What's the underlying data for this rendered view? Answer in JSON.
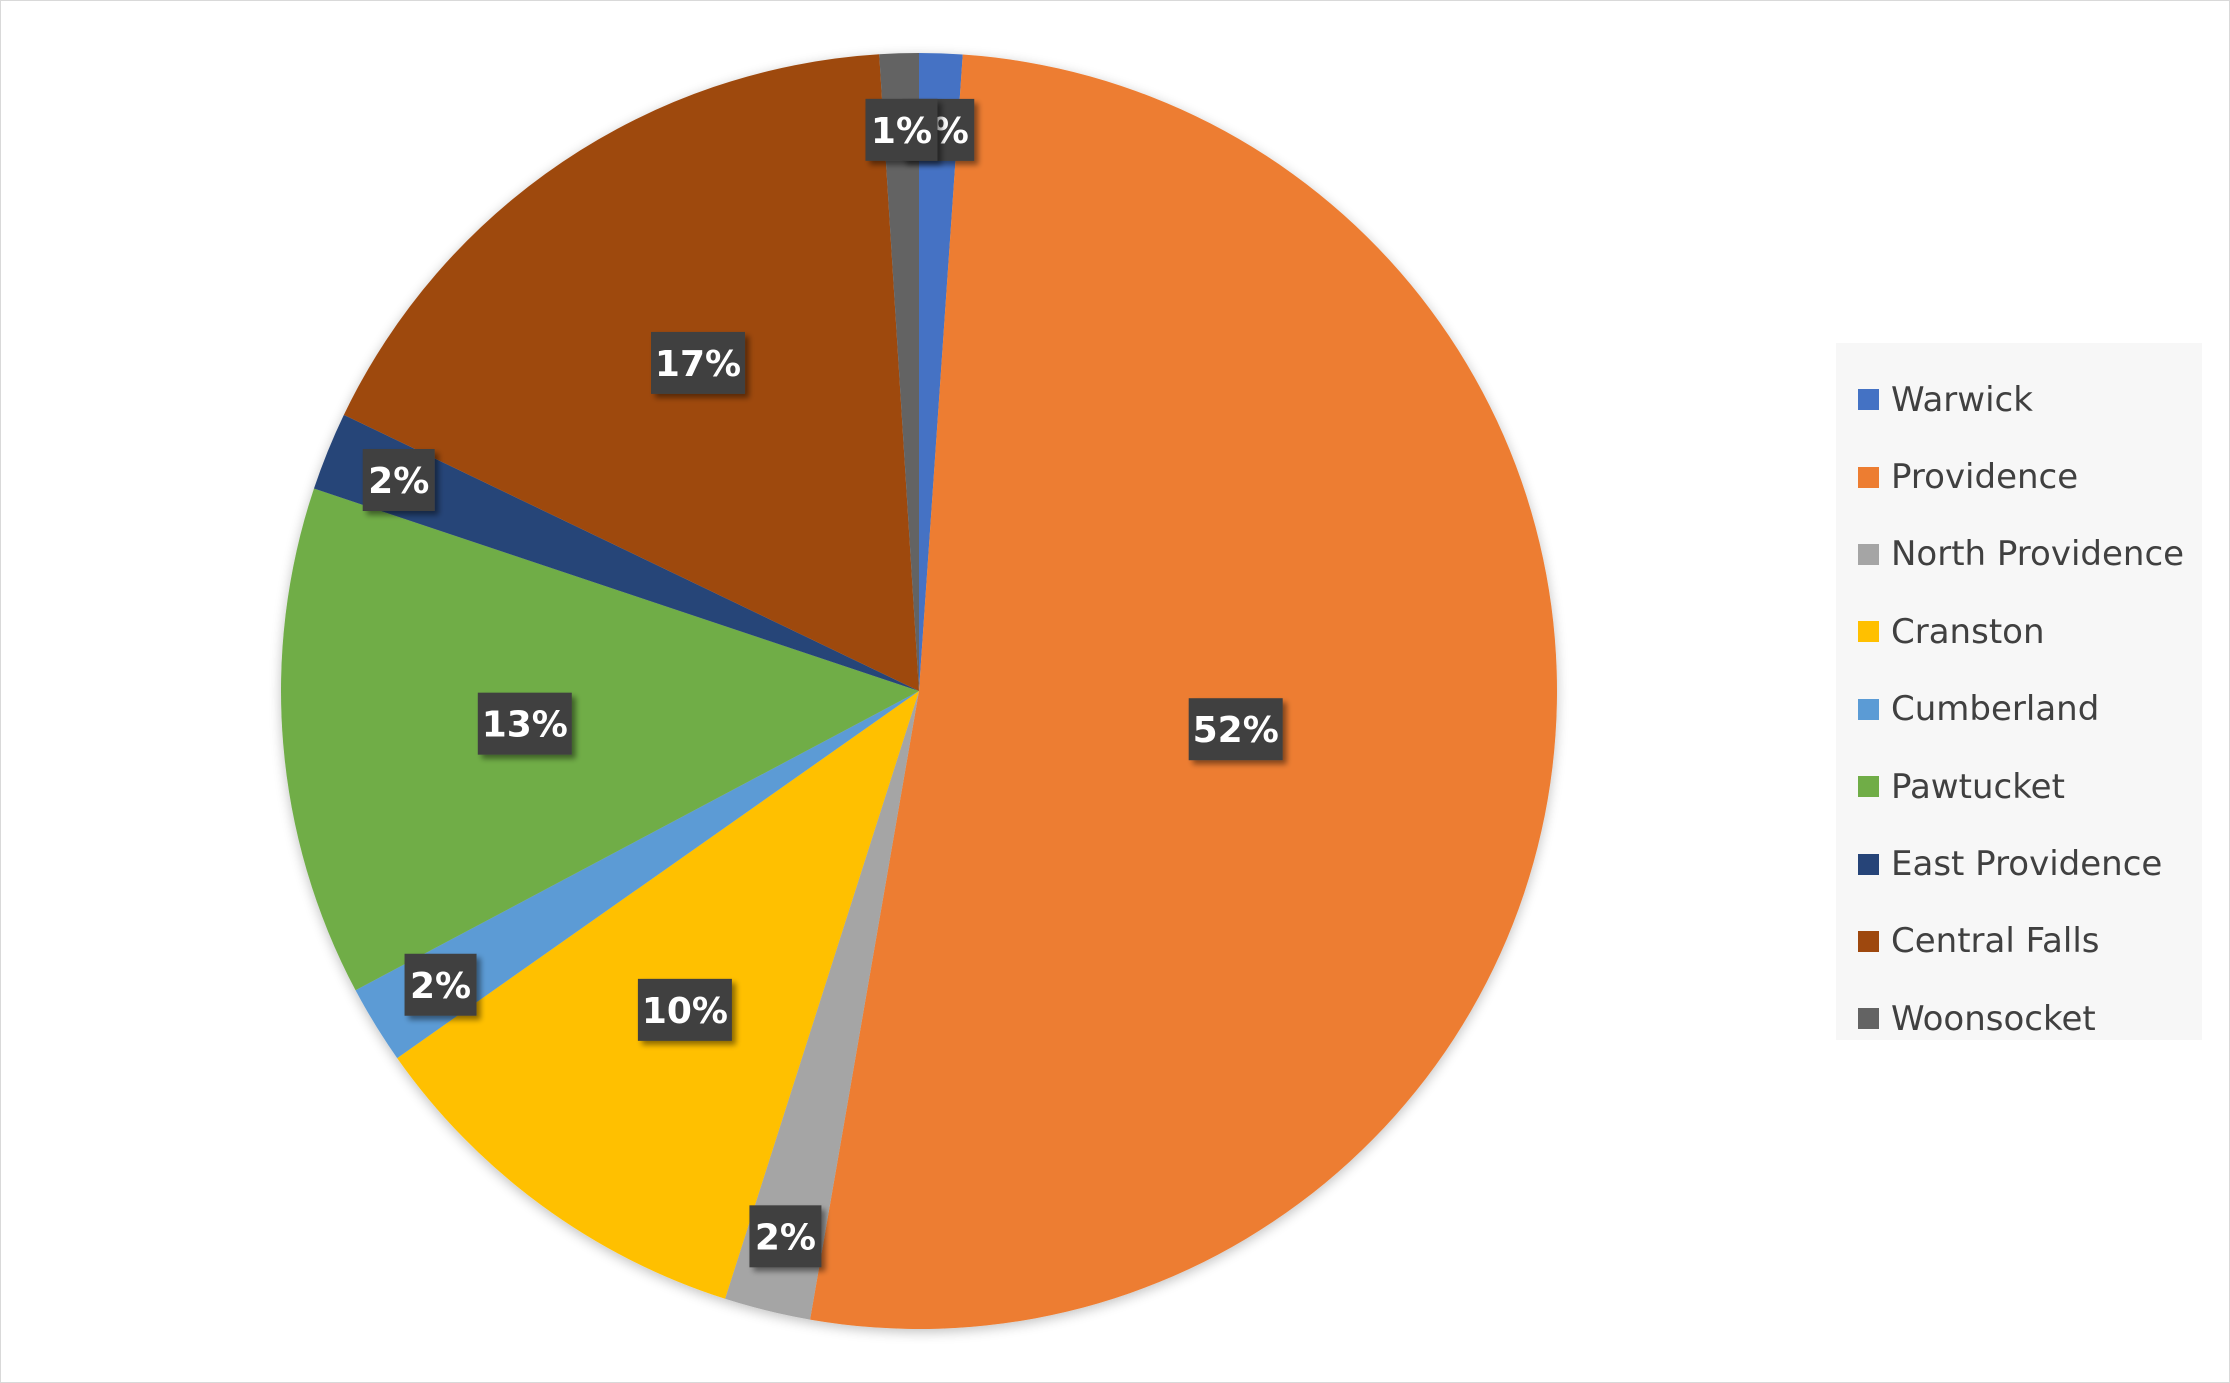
{
  "chart_data": {
    "type": "pie",
    "categories": [
      "Warwick",
      "Providence",
      "North Providence",
      "Cranston",
      "Cumberland",
      "Pawtucket",
      "East Providence",
      "Central Falls",
      "Woonsocket"
    ],
    "values": [
      1.1,
      52,
      2.2,
      10.4,
      2.0,
      13,
      2.0,
      17,
      1.0
    ],
    "data_labels": [
      "1%",
      "52%",
      "2%",
      "10%",
      "2%",
      "13%",
      "2%",
      "17%",
      "1%"
    ],
    "colors": [
      "#4472C4",
      "#ED7D31",
      "#A5A5A5",
      "#FFC000",
      "#5B9BD5",
      "#70AD47",
      "#264478",
      "#9E480E",
      "#636363"
    ],
    "start_angle_deg": 0,
    "direction": "clockwise",
    "legend_position": "right",
    "title": ""
  }
}
